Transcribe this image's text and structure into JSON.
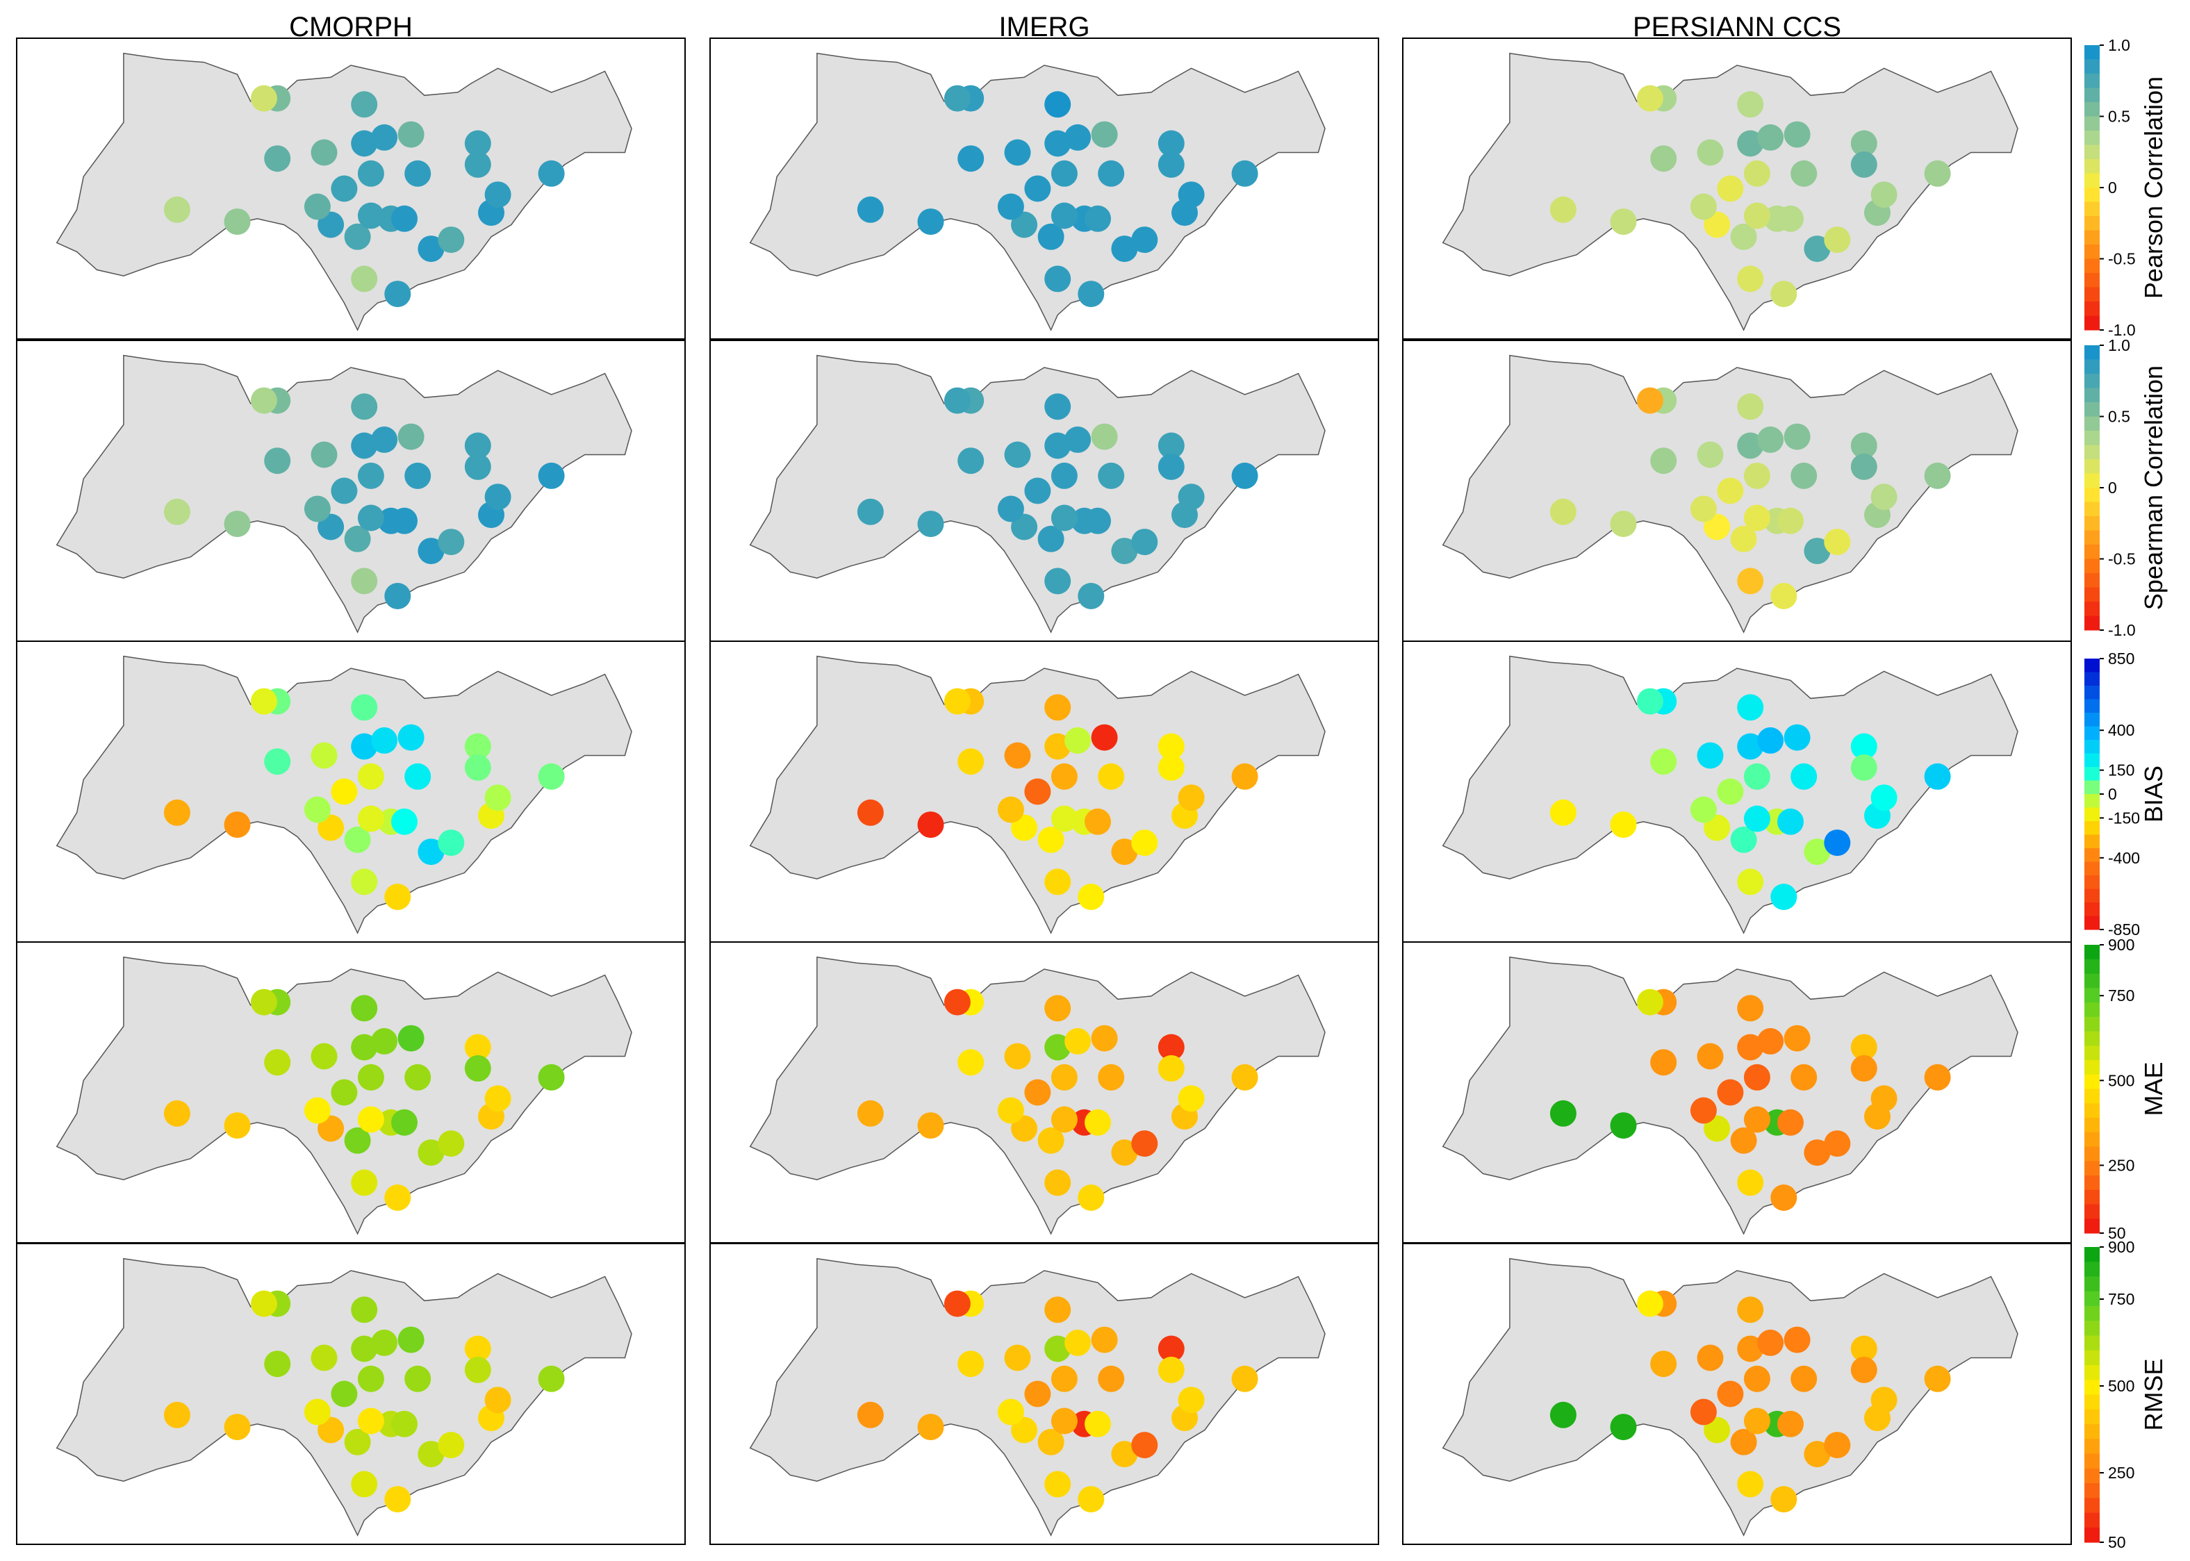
{
  "columns": [
    "CMORPH",
    "IMERG",
    "PERSIANN CCS"
  ],
  "metrics": [
    {
      "label": "Pearson Correlation",
      "scale": "corr",
      "ticks": [
        "1.0",
        "0.5",
        "0",
        "-0.5",
        "-1.0"
      ]
    },
    {
      "label": "Spearman Correlation",
      "scale": "corr",
      "ticks": [
        "1.0",
        "0.5",
        "0",
        "-0.5",
        "-1.0"
      ]
    },
    {
      "label": "BIAS",
      "scale": "bias",
      "ticks": [
        "850",
        "400",
        "150",
        "0",
        "-150",
        "-400",
        "-850"
      ]
    },
    {
      "label": "MAE",
      "scale": "err",
      "ticks": [
        "900",
        "750",
        "500",
        "250",
        "50"
      ]
    },
    {
      "label": "RMSE",
      "scale": "err",
      "ticks": [
        "900",
        "750",
        "500",
        "250",
        "50"
      ]
    }
  ],
  "station_values": [
    [
      [
        0.3,
        0.45,
        0.55,
        0.65,
        0.6,
        0.7,
        0.8,
        0.85,
        0.65,
        0.8,
        0.6,
        0.8,
        0.85,
        0.2,
        0.85,
        0.85,
        0.35,
        0.75,
        0.9,
        0.8,
        0.85,
        0.9,
        0.7,
        0.8,
        0.8,
        0.9,
        0.85,
        0.85
      ],
      [
        0.3,
        0.45,
        0.55,
        0.65,
        0.6,
        0.7,
        0.8,
        0.85,
        0.65,
        0.8,
        0.6,
        0.9,
        0.85,
        0.35,
        0.85,
        0.85,
        0.4,
        0.7,
        0.9,
        0.8,
        0.85,
        0.9,
        0.75,
        0.8,
        0.8,
        0.9,
        0.85,
        0.9
      ],
      [
        -300,
        -350,
        50,
        80,
        -50,
        70,
        -150,
        -200,
        0,
        -100,
        250,
        -50,
        200,
        -100,
        300,
        250,
        -60,
        20,
        150,
        -100,
        -200,
        280,
        100,
        30,
        50,
        -120,
        -10,
        50
      ],
      [
        400,
        420,
        680,
        600,
        620,
        700,
        650,
        350,
        500,
        650,
        750,
        600,
        650,
        600,
        680,
        680,
        550,
        700,
        720,
        500,
        450,
        620,
        600,
        450,
        700,
        420,
        450,
        700
      ],
      [
        400,
        400,
        650,
        650,
        600,
        650,
        680,
        400,
        520,
        650,
        700,
        600,
        650,
        550,
        650,
        650,
        550,
        600,
        620,
        480,
        450,
        600,
        550,
        450,
        600,
        450,
        400,
        650
      ]
    ],
    [
      [
        0.9,
        0.9,
        0.85,
        0.9,
        0.9,
        0.95,
        0.9,
        0.8,
        0.9,
        0.85,
        0.6,
        0.9,
        0.85,
        0.8,
        0.9,
        0.9,
        0.85,
        0.9,
        0.85,
        0.85,
        0.85,
        0.9,
        0.9,
        0.85,
        0.85,
        0.9,
        0.9,
        0.85
      ],
      [
        0.8,
        0.8,
        0.75,
        0.8,
        0.8,
        0.85,
        0.85,
        0.8,
        0.85,
        0.85,
        0.4,
        0.85,
        0.8,
        0.8,
        0.85,
        0.85,
        0.8,
        0.85,
        0.85,
        0.8,
        0.8,
        0.75,
        0.8,
        0.8,
        0.85,
        0.8,
        0.8,
        0.9
      ],
      [
        -600,
        -750,
        -250,
        -200,
        -350,
        -300,
        -500,
        -150,
        -250,
        -300,
        -750,
        -100,
        -200,
        -200,
        -250,
        -50,
        -200,
        -150,
        -300,
        -100,
        -150,
        -300,
        -150,
        -150,
        -150,
        -200,
        -250,
        -300
      ],
      [
        350,
        350,
        500,
        480,
        400,
        350,
        300,
        400,
        450,
        380,
        350,
        100,
        350,
        150,
        700,
        450,
        400,
        420,
        480,
        380,
        450,
        380,
        180,
        120,
        450,
        400,
        480,
        400
      ],
      [
        300,
        350,
        480,
        450,
        400,
        350,
        300,
        450,
        480,
        350,
        350,
        100,
        320,
        150,
        650,
        450,
        450,
        400,
        480,
        350,
        450,
        400,
        200,
        120,
        450,
        420,
        450,
        400
      ]
    ],
    [
      [
        0.2,
        0.25,
        0.35,
        0.4,
        0.35,
        0.3,
        0.1,
        0.05,
        0.25,
        0.2,
        0.55,
        0.3,
        0.45,
        0.15,
        0.6,
        0.55,
        0.15,
        0.3,
        0.3,
        0.2,
        0.2,
        0.7,
        0.2,
        0.5,
        0.65,
        0.45,
        0.35,
        0.4
      ],
      [
        0.2,
        0.25,
        0.35,
        0.4,
        0.3,
        0.25,
        0.1,
        0.0,
        0.15,
        0.2,
        0.5,
        0.25,
        0.5,
        -0.3,
        0.55,
        0.5,
        -0.2,
        0.1,
        0.2,
        0.1,
        0.1,
        0.7,
        0.1,
        0.5,
        0.6,
        0.4,
        0.3,
        0.45
      ],
      [
        -150,
        -150,
        200,
        0,
        250,
        200,
        0,
        -100,
        0,
        80,
        300,
        -50,
        200,
        100,
        300,
        350,
        -100,
        100,
        250,
        200,
        200,
        0,
        500,
        150,
        50,
        200,
        150,
        300
      ],
      [
        850,
        850,
        300,
        300,
        300,
        300,
        200,
        550,
        200,
        200,
        300,
        800,
        300,
        550,
        250,
        250,
        450,
        300,
        250,
        300,
        300,
        250,
        250,
        400,
        300,
        350,
        350,
        300
      ],
      [
        850,
        850,
        300,
        350,
        300,
        350,
        250,
        550,
        200,
        300,
        250,
        800,
        300,
        500,
        300,
        250,
        450,
        300,
        300,
        350,
        400,
        350,
        300,
        400,
        300,
        400,
        400,
        350
      ]
    ]
  ]
}
